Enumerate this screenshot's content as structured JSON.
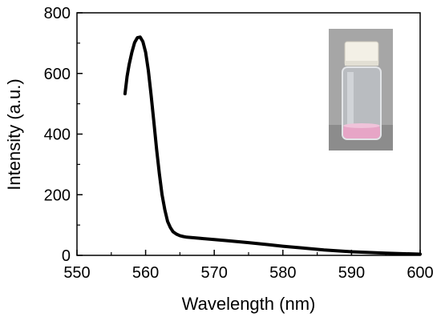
{
  "chart_data": {
    "type": "line",
    "title": "",
    "xlabel": "Wavelength (nm)",
    "ylabel": "Intensity (a.u.)",
    "xlim": [
      550,
      600
    ],
    "ylim": [
      0,
      800
    ],
    "x_ticks": [
      550,
      560,
      570,
      580,
      590,
      600
    ],
    "y_ticks": [
      0,
      200,
      400,
      600,
      800
    ],
    "x_tick_labels": [
      "550",
      "560",
      "570",
      "580",
      "590",
      "600"
    ],
    "y_tick_labels": [
      "0",
      "200",
      "400",
      "600",
      "800"
    ],
    "grid": false,
    "legend": "none",
    "series": [
      {
        "color": "#000000",
        "x": [
          557.0,
          557.3,
          557.6,
          558.0,
          558.4,
          558.8,
          559.2,
          559.6,
          560.0,
          560.4,
          560.8,
          561.2,
          561.6,
          562.0,
          562.4,
          562.8,
          563.2,
          563.6,
          564.0,
          564.5,
          565.0,
          565.5,
          566.0,
          567.0,
          568.0,
          570.0,
          572.0,
          575.0,
          578.0,
          580.0,
          583.0,
          586.0,
          590.0,
          595.0,
          600.0
        ],
        "y": [
          533,
          590,
          630,
          670,
          702,
          718,
          720,
          705,
          670,
          610,
          530,
          440,
          350,
          270,
          200,
          150,
          112,
          92,
          78,
          70,
          65,
          62,
          60,
          58,
          56,
          52,
          48,
          42,
          35,
          30,
          24,
          18,
          12,
          7,
          4
        ]
      }
    ],
    "inset": {
      "description_icon": "vial-photo-icon",
      "colors": {
        "cap": "#f4f1e8",
        "liquid": "#e9a6c8",
        "background": "#9c9c9c"
      }
    }
  }
}
